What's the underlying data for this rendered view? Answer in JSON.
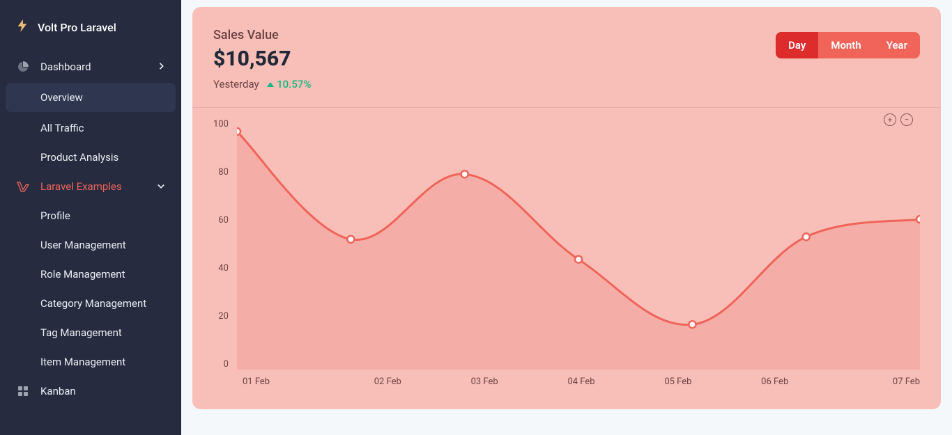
{
  "brand": {
    "name": "Volt Pro Laravel"
  },
  "sidebar": {
    "dashboard_label": "Dashboard",
    "dashboard_items": [
      {
        "label": "Overview",
        "active": true
      },
      {
        "label": "All Traffic"
      },
      {
        "label": "Product Analysis"
      }
    ],
    "laravel_label": "Laravel Examples",
    "laravel_items": [
      {
        "label": "Profile"
      },
      {
        "label": "User Management"
      },
      {
        "label": "Role Management"
      },
      {
        "label": "Category Management"
      },
      {
        "label": "Tag Management"
      },
      {
        "label": "Item Management"
      }
    ],
    "kanban_label": "Kanban"
  },
  "card": {
    "title": "Sales Value",
    "value": "$10,567",
    "sub_label": "Yesterday",
    "sub_change": "10.57%",
    "toggle": {
      "day": "Day",
      "month": "Month",
      "year": "Year",
      "active": "Day"
    }
  },
  "chart": {
    "type": "area-line",
    "stroke": "#F0645A",
    "fill": "#F5ACA3",
    "marker_fill": "#ffffff",
    "marker_stroke": "#F0645A",
    "axis_text_color": "#6b4343",
    "card_bg": "#F8BEB8",
    "grid": false,
    "ylim": [
      0,
      100
    ],
    "ytick_step": 20,
    "y_labels": [
      "100",
      "80",
      "60",
      "40",
      "20",
      "0"
    ],
    "x_labels": [
      "01 Feb",
      "02 Feb",
      "03 Feb",
      "04 Feb",
      "05 Feb",
      "06 Feb",
      "07 Feb"
    ],
    "x_values": [
      0,
      1,
      2,
      3,
      4,
      5,
      6
    ],
    "y_values": [
      95,
      52,
      78,
      44,
      18,
      53,
      60
    ],
    "line_width": 3,
    "marker_radius": 5
  }
}
